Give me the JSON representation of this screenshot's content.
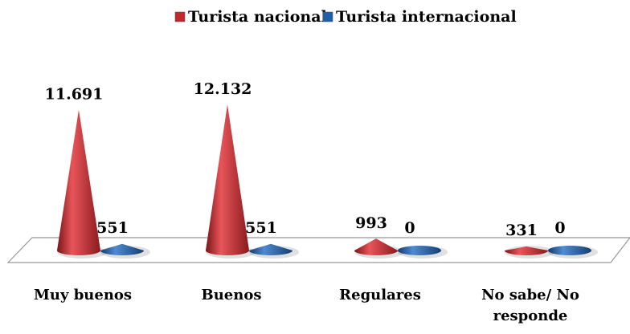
{
  "chart_data": {
    "type": "cone",
    "categories": [
      "Muy buenos",
      "Buenos",
      "Regulares",
      "No sabe/ No responde"
    ],
    "series": [
      {
        "name": "Turista nacional",
        "color": "#c0282c",
        "values": [
          11691,
          12132,
          993,
          331
        ],
        "value_labels": [
          "11.691",
          "12.132",
          "993",
          "331"
        ]
      },
      {
        "name": "Turista internacional",
        "color": "#1f5fa8",
        "values": [
          551,
          551,
          0,
          0
        ]
      }
    ],
    "legend": "top"
  }
}
